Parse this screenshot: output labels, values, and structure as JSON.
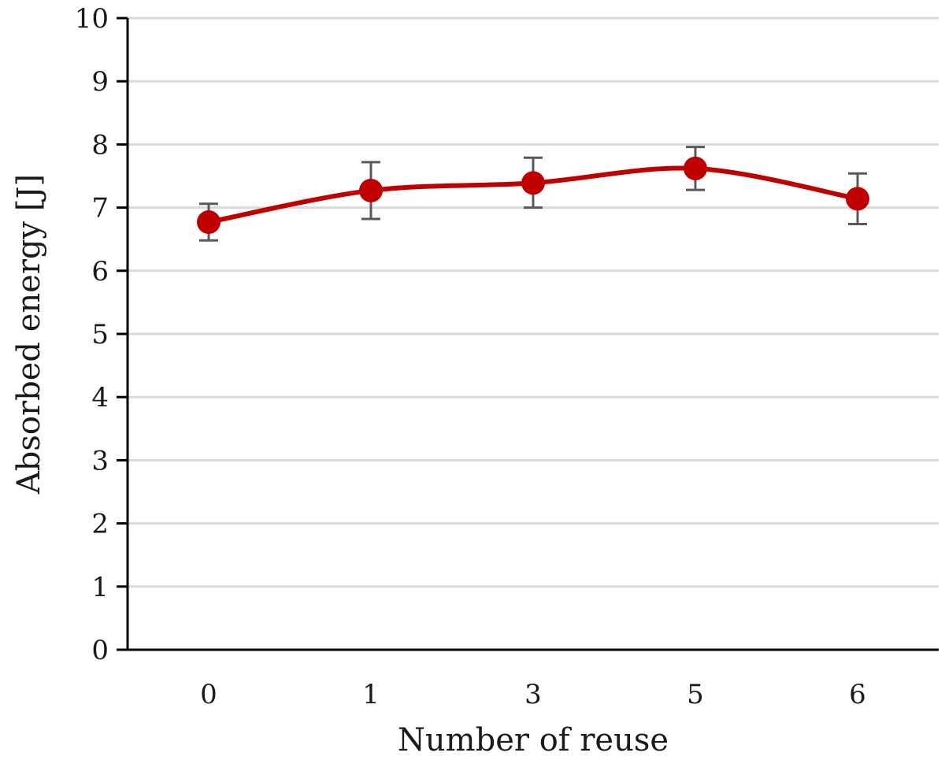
{
  "chart_data": {
    "type": "line",
    "xlabel": "Number of reuse",
    "ylabel": "Absorbed energy [J]",
    "categories": [
      "0",
      "1",
      "3",
      "5",
      "6"
    ],
    "series": [
      {
        "values": [
          6.77,
          7.27,
          7.39,
          7.62,
          7.14
        ],
        "error_low": [
          6.48,
          6.82,
          7.0,
          7.28,
          6.74
        ],
        "error_high": [
          7.06,
          7.72,
          7.79,
          7.96,
          7.54
        ]
      }
    ],
    "ylim": [
      0,
      10
    ],
    "yticks": [
      "0",
      "1",
      "2",
      "3",
      "4",
      "5",
      "6",
      "7",
      "8",
      "9",
      "10"
    ],
    "grid": "horizontal",
    "line_color": "#c00000",
    "error_bar_color": "#595959",
    "smooth": true
  }
}
